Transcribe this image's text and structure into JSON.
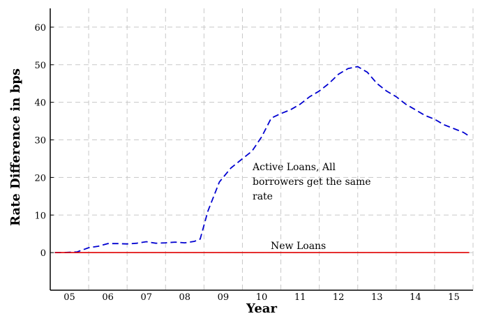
{
  "chart_data": {
    "type": "line",
    "title": "",
    "xlabel": "Year",
    "ylabel": "Rate Difference in bps",
    "xlim": [
      4.5,
      15.5
    ],
    "ylim": [
      -10,
      65
    ],
    "x_ticks": [
      "05",
      "06",
      "07",
      "08",
      "09",
      "10",
      "11",
      "12",
      "13",
      "14",
      "15"
    ],
    "y_ticks": [
      0,
      10,
      20,
      30,
      40,
      50,
      60
    ],
    "grid": true,
    "annotations": {
      "active_loans": [
        "Active Loans, All",
        "borrowers get the same",
        "rate"
      ],
      "new_loans": "New Loans"
    },
    "colors": {
      "active_loans": "#0000d0",
      "new_loans": "#e00000"
    },
    "series": [
      {
        "id": "active_loans",
        "style": "dashed",
        "x": [
          4.62,
          4.85,
          5.2,
          5.5,
          5.75,
          6.0,
          6.25,
          6.5,
          6.75,
          7.0,
          7.25,
          7.5,
          7.75,
          8.0,
          8.25,
          8.4,
          8.6,
          8.9,
          9.2,
          9.5,
          9.75,
          10.0,
          10.25,
          10.5,
          10.75,
          11.0,
          11.25,
          11.5,
          11.75,
          12.0,
          12.25,
          12.5,
          12.75,
          13.0,
          13.25,
          13.5,
          13.75,
          14.0,
          14.25,
          14.5,
          14.75,
          15.0,
          15.25,
          15.4
        ],
        "y": [
          0,
          0,
          0.2,
          1.3,
          1.7,
          2.4,
          2.4,
          2.3,
          2.5,
          2.9,
          2.5,
          2.6,
          2.8,
          2.6,
          3.0,
          3.6,
          11.0,
          18.8,
          22.5,
          25.0,
          27.0,
          30.8,
          35.8,
          37.0,
          38.0,
          39.5,
          41.5,
          43.0,
          45.0,
          47.5,
          49.0,
          49.5,
          48.0,
          45.0,
          43.0,
          41.5,
          39.5,
          38.0,
          36.5,
          35.5,
          34.0,
          33.0,
          32.0,
          31.0
        ]
      },
      {
        "id": "new_loans",
        "style": "solid",
        "x": [
          4.62,
          15.4
        ],
        "y": [
          0,
          0
        ]
      }
    ]
  }
}
